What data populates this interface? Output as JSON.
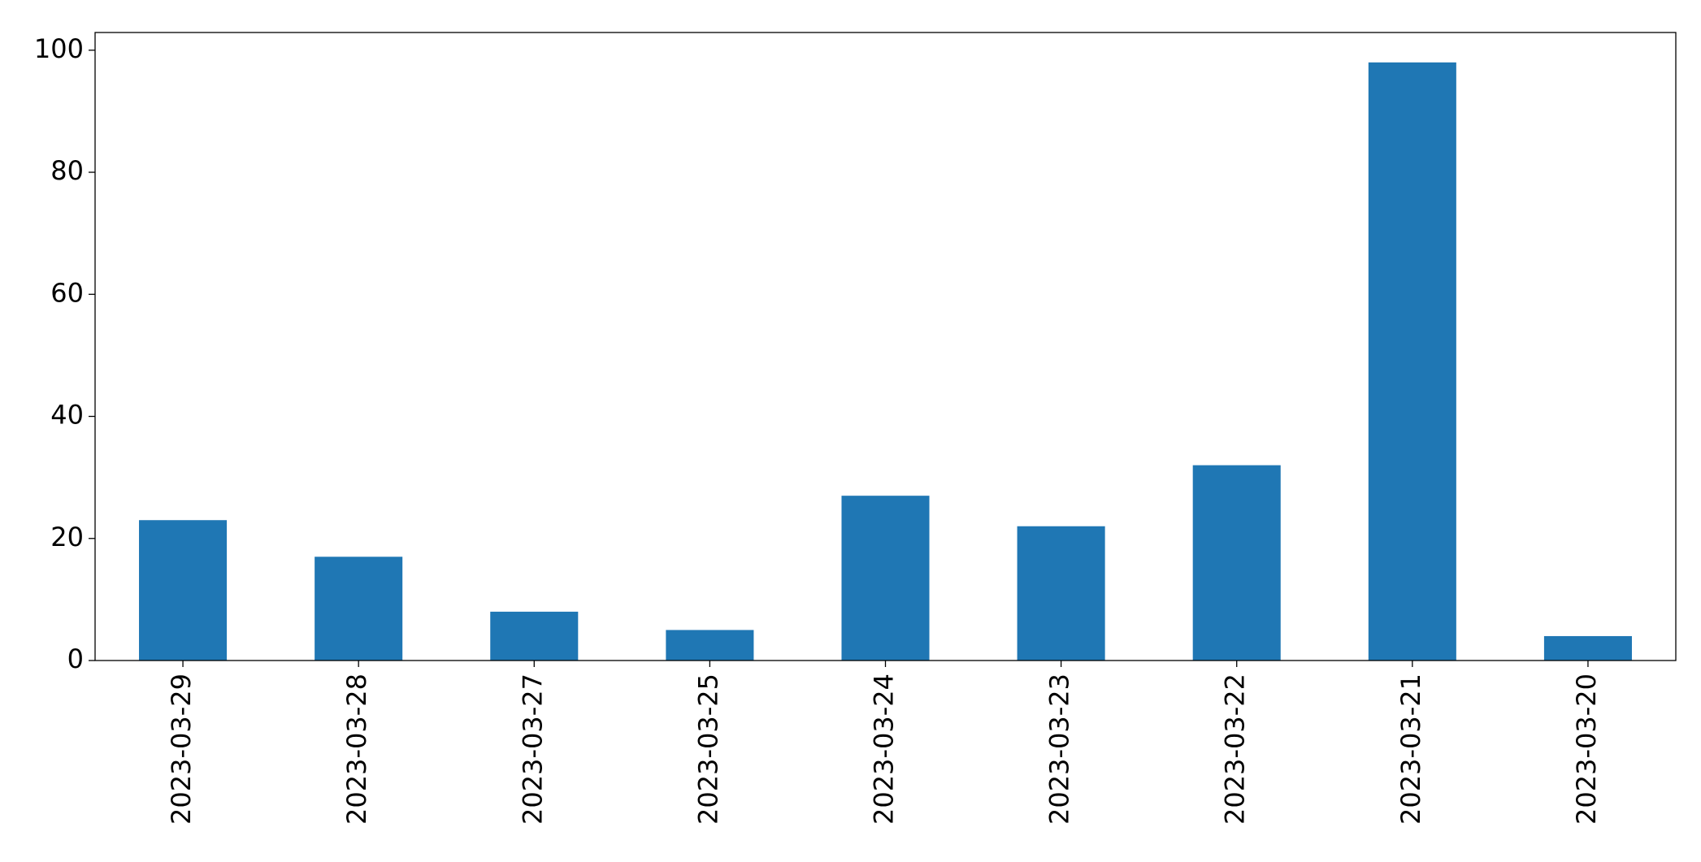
{
  "chart_data": {
    "type": "bar",
    "categories": [
      "2023-03-29",
      "2023-03-28",
      "2023-03-27",
      "2023-03-25",
      "2023-03-24",
      "2023-03-23",
      "2023-03-22",
      "2023-03-21",
      "2023-03-20"
    ],
    "values": [
      23,
      17,
      8,
      5,
      27,
      22,
      32,
      98,
      4
    ],
    "color": "#1f77b4",
    "ylim": [
      0,
      102.9
    ],
    "yticks": [
      0,
      20,
      40,
      60,
      80,
      100
    ],
    "grid": false
  }
}
